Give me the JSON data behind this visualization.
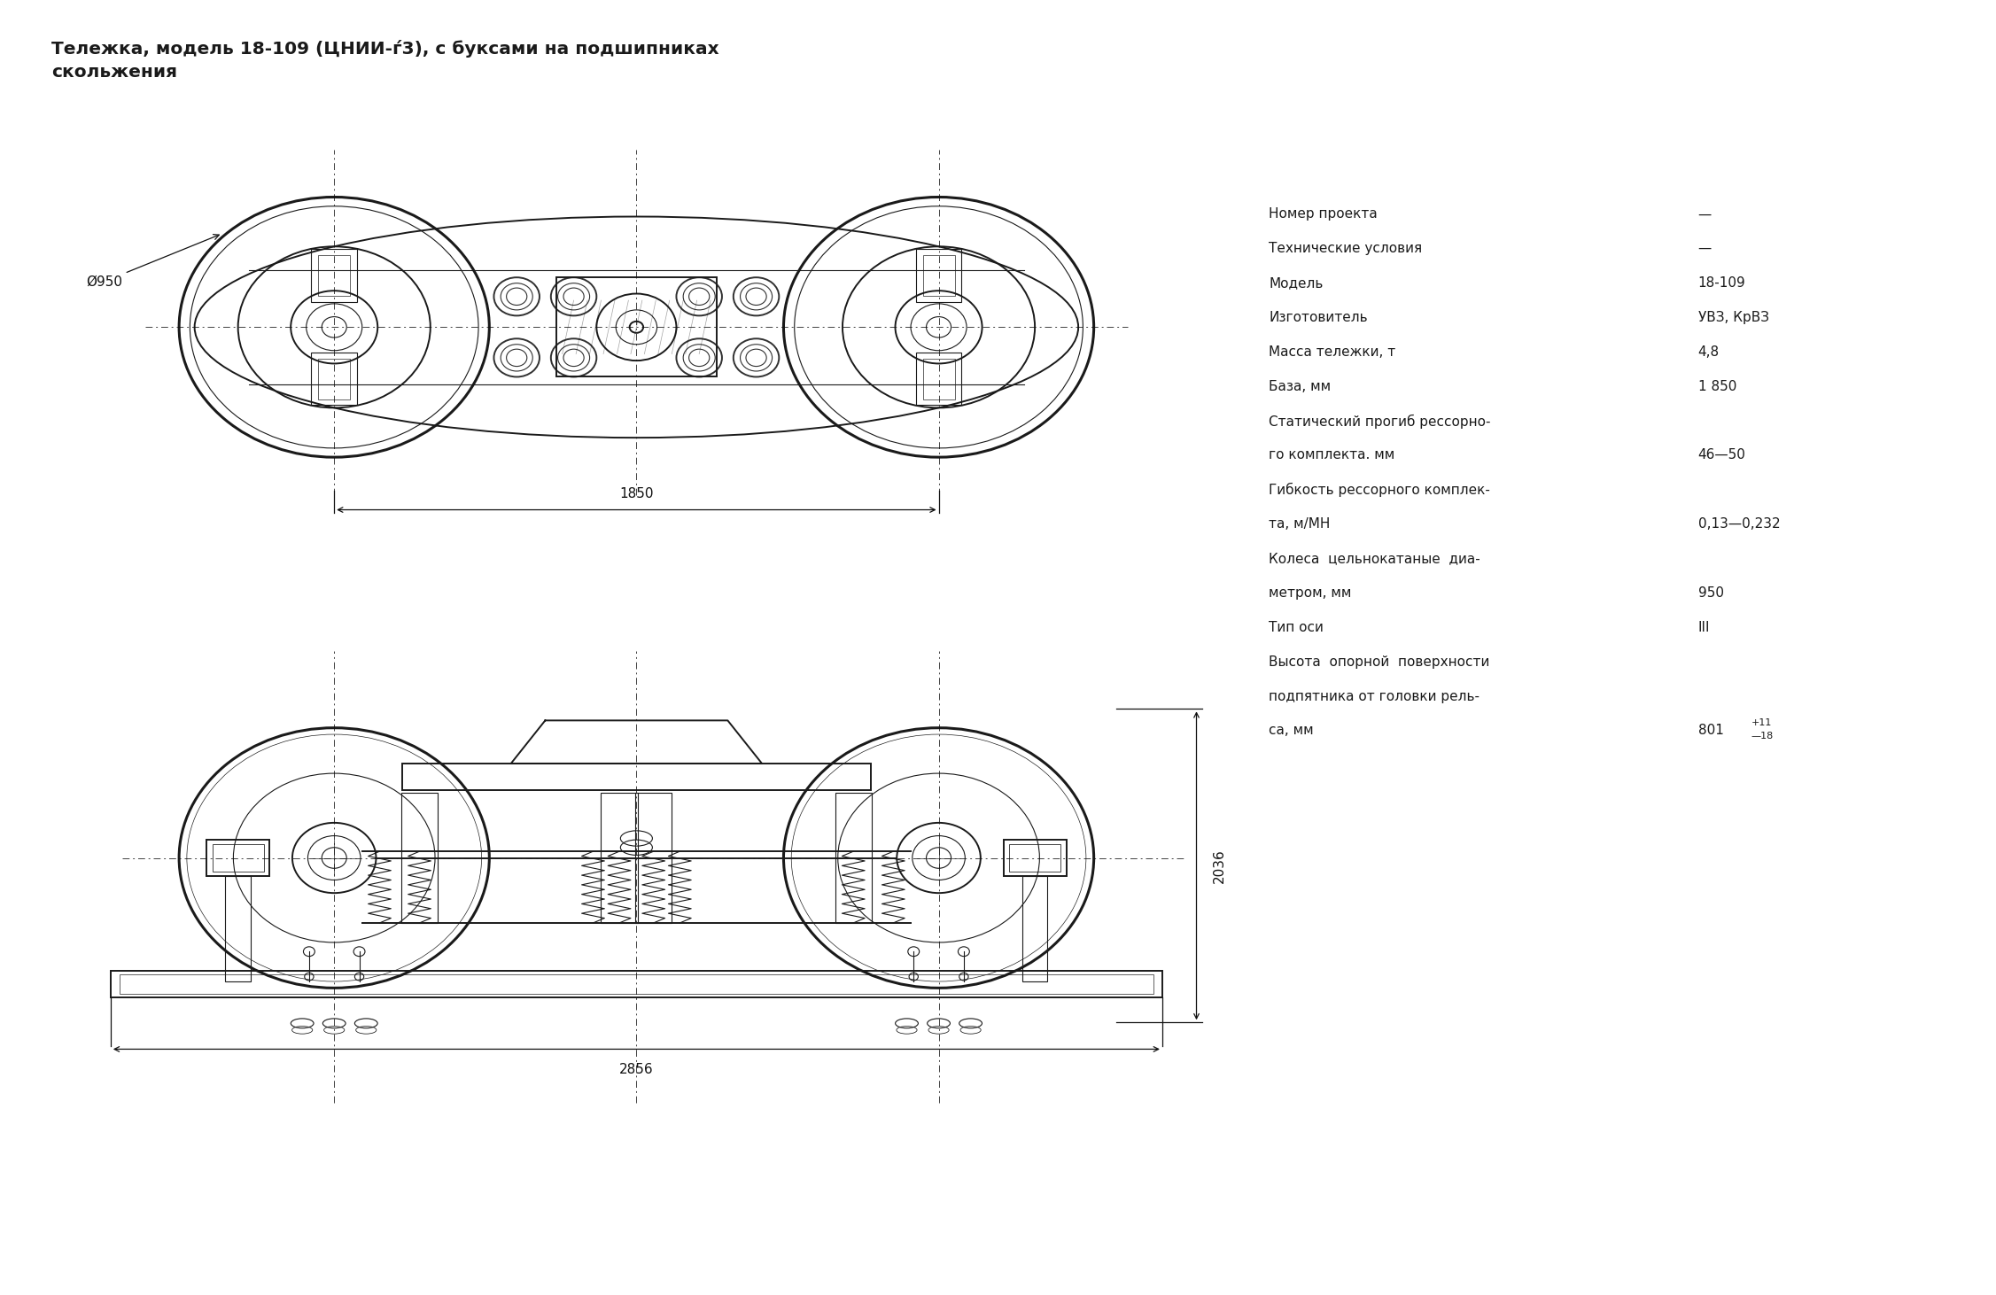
{
  "title_line1": "Тележка, модель 18-109 (ЦНИИ-ѓ3), с буксами на подшипниках",
  "title_line2": "скольжения",
  "bg_color": "#ffffff",
  "text_color": "#1a1a1a",
  "title_fontsize": 14.5,
  "spec_fontsize": 11,
  "dim_1850": "1850",
  "dim_2036": "2036",
  "dim_2856": "2856",
  "dim_950_label": "Ø950"
}
